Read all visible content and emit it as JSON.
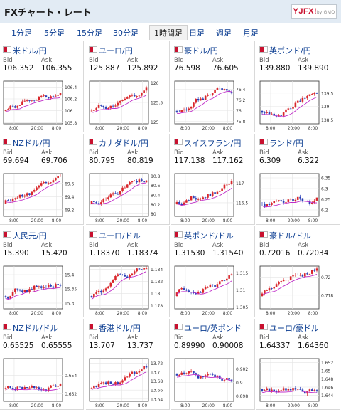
{
  "header": {
    "title": "FXチャート・レート",
    "logo_text": "YJFX!",
    "logo_sub": "by GMO"
  },
  "tabs": [
    {
      "label": "1分足",
      "active": false
    },
    {
      "label": "5分足",
      "active": false
    },
    {
      "label": "15分足",
      "active": false
    },
    {
      "label": "30分足",
      "active": false
    },
    {
      "label": "1時間足",
      "active": true
    },
    {
      "label": "日足",
      "active": false
    },
    {
      "label": "週足",
      "active": false
    },
    {
      "label": "月足",
      "active": false
    }
  ],
  "labels": {
    "bid": "Bid",
    "ask": "Ask"
  },
  "colors": {
    "up": "#d9262b",
    "down": "#2a3fb8",
    "ma": "#c02cc8",
    "title": "#0b3d91"
  },
  "pairs": [
    {
      "name": "米ドル/円",
      "bid": "106.352",
      "ask": "106.355",
      "ticks": [
        "106.4",
        "106.2",
        "106",
        "105.8"
      ],
      "ylim": [
        105.78,
        106.5
      ],
      "xticks": [
        "8:00",
        "20:00",
        "8:00"
      ],
      "trend": "up"
    },
    {
      "name": "ユーロ/円",
      "bid": "125.887",
      "ask": "125.892",
      "ticks": [
        "126",
        "125.5",
        "125"
      ],
      "ylim": [
        124.95,
        126.05
      ],
      "xticks": [
        "8:00",
        "20:00",
        "8:00"
      ],
      "trend": "up"
    },
    {
      "name": "豪ドル/円",
      "bid": "76.598",
      "ask": "76.605",
      "ticks": [
        "76.4",
        "76.2",
        "76",
        "75.8"
      ],
      "ylim": [
        75.75,
        76.55
      ],
      "xticks": [
        "8:00",
        "20:00",
        "8:00"
      ],
      "trend": "up"
    },
    {
      "name": "英ポンド/円",
      "bid": "139.880",
      "ask": "139.890",
      "ticks": [
        "139.5",
        "139",
        "138.5"
      ],
      "ylim": [
        138.35,
        139.95
      ],
      "xticks": [
        "8:00",
        "20:00",
        "8:00"
      ],
      "trend": "up"
    },
    {
      "name": "NZドル/円",
      "bid": "69.694",
      "ask": "69.706",
      "ticks": [
        "69.6",
        "69.4",
        "69.2"
      ],
      "ylim": [
        69.1,
        69.75
      ],
      "xticks": [
        "8:00",
        "20:00",
        "8:00"
      ],
      "trend": "up"
    },
    {
      "name": "カナダドル/円",
      "bid": "80.795",
      "ask": "80.819",
      "ticks": [
        "80.8",
        "80.6",
        "80.4",
        "80.2",
        "80"
      ],
      "ylim": [
        79.95,
        80.85
      ],
      "xticks": [
        "8:00",
        "20:00",
        "8:00"
      ],
      "trend": "up"
    },
    {
      "name": "スイスフラン/円",
      "bid": "117.138",
      "ask": "117.162",
      "ticks": [
        "117",
        "116.5"
      ],
      "ylim": [
        116.15,
        117.25
      ],
      "xticks": [
        "8:00",
        "20:00",
        "8:00"
      ],
      "trend": "up"
    },
    {
      "name": "ランド/円",
      "bid": "6.309",
      "ask": "6.322",
      "ticks": [
        "6.35",
        "6.3",
        "6.25",
        "6.2"
      ],
      "ylim": [
        6.17,
        6.37
      ],
      "xticks": [
        "8:00",
        "20:00",
        "8:00"
      ],
      "trend": "flat"
    },
    {
      "name": "人民元/円",
      "bid": "15.390",
      "ask": "15.420",
      "ticks": [
        "15.4",
        "15.35",
        "15.3"
      ],
      "ylim": [
        15.28,
        15.43
      ],
      "xticks": [
        "8:00",
        "20:00",
        "8:00"
      ],
      "trend": "up"
    },
    {
      "name": "ユーロ/ドル",
      "bid": "1.18370",
      "ask": "1.18374",
      "ticks": [
        "1.184",
        "1.182",
        "1.18",
        "1.178"
      ],
      "ylim": [
        1.1775,
        1.1845
      ],
      "xticks": [
        "8:00",
        "20:00",
        "8:00"
      ],
      "trend": "up"
    },
    {
      "name": "英ポンド/ドル",
      "bid": "1.31530",
      "ask": "1.31540",
      "ticks": [
        "1.315",
        "1.31",
        "1.305"
      ],
      "ylim": [
        1.3045,
        1.317
      ],
      "xticks": [
        "8:00",
        "20:00",
        "8:00"
      ],
      "trend": "up"
    },
    {
      "name": "豪ドル/ドル",
      "bid": "0.72016",
      "ask": "0.72034",
      "ticks": [
        "0.72",
        "0.718"
      ],
      "ylim": [
        0.7165,
        0.7212
      ],
      "xticks": [
        "8:00",
        "20:00",
        "8:00"
      ],
      "trend": "up"
    },
    {
      "name": "NZドル/ドル",
      "bid": "0.65525",
      "ask": "0.65555",
      "ticks": [
        "0.654",
        "0.652"
      ],
      "ylim": [
        0.6512,
        0.6558
      ],
      "xticks": [
        "8:00",
        "20:00",
        "8:00"
      ],
      "trend": "flat"
    },
    {
      "name": "香港ドル/円",
      "bid": "13.707",
      "ask": "13.737",
      "ticks": [
        "13.72",
        "13.7",
        "13.68",
        "13.66",
        "13.64"
      ],
      "ylim": [
        13.635,
        13.73
      ],
      "xticks": [
        "8:00",
        "20:00",
        "8:00"
      ],
      "trend": "up"
    },
    {
      "name": "ユーロ/英ポンド",
      "bid": "0.89990",
      "ask": "0.90008",
      "ticks": [
        "0.902",
        "0.9",
        "0.898"
      ],
      "ylim": [
        0.8972,
        0.9035
      ],
      "xticks": [
        "8:00",
        "20:00",
        "8:00"
      ],
      "trend": "down"
    },
    {
      "name": "ユーロ/豪ドル",
      "bid": "1.64337",
      "ask": "1.64360",
      "ticks": [
        "1.652",
        "1.65",
        "1.648",
        "1.646",
        "1.644"
      ],
      "ylim": [
        1.6425,
        1.653
      ],
      "xticks": [
        "8:00",
        "20:00",
        "8:00"
      ],
      "trend": "flat"
    }
  ]
}
